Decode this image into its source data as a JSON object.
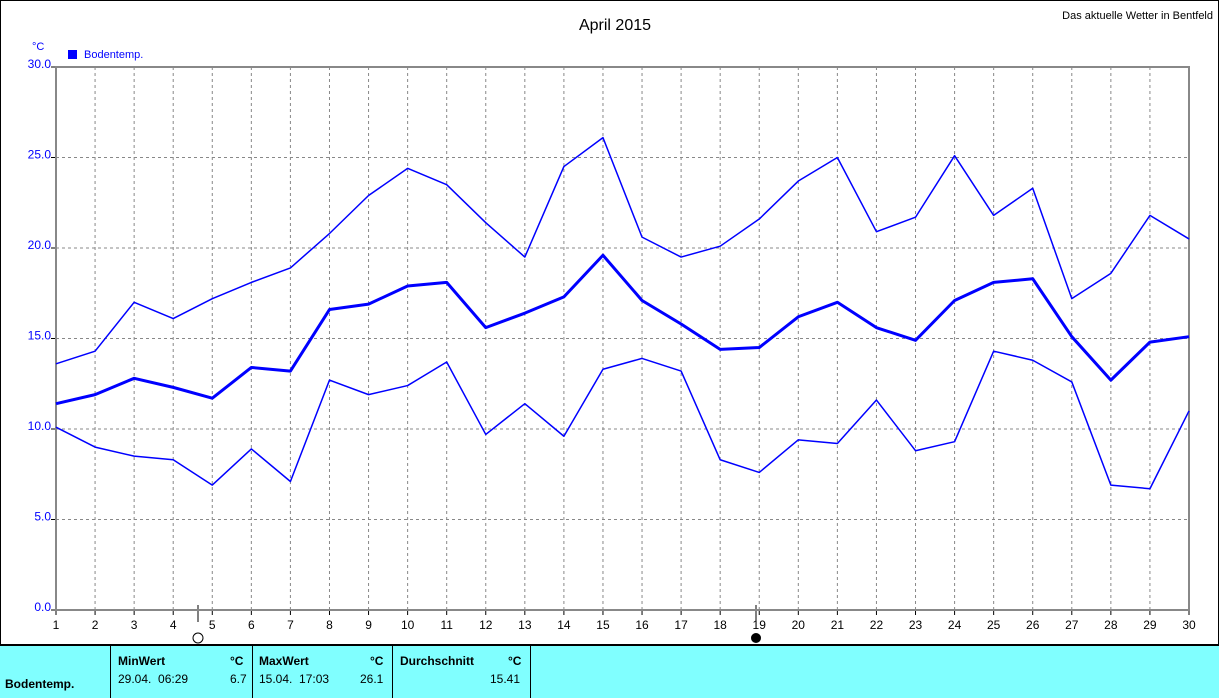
{
  "chart_data": {
    "type": "line",
    "title": "April 2015",
    "subtitle": "Das aktuelle Wetter in Bentfeld",
    "y_label": "°C",
    "legend": "Bodentemp.",
    "legend_color": "#0000ff",
    "x": [
      1,
      2,
      3,
      4,
      5,
      6,
      7,
      8,
      9,
      10,
      11,
      12,
      13,
      14,
      15,
      16,
      17,
      18,
      19,
      20,
      21,
      22,
      23,
      24,
      25,
      26,
      27,
      28,
      29,
      30
    ],
    "xlim": [
      1,
      30
    ],
    "xticks": [
      1,
      2,
      3,
      4,
      5,
      6,
      7,
      8,
      9,
      10,
      11,
      12,
      13,
      14,
      15,
      16,
      17,
      18,
      19,
      20,
      21,
      22,
      23,
      24,
      25,
      26,
      27,
      28,
      29,
      30
    ],
    "ylim": [
      0,
      30
    ],
    "yticks": [
      {
        "value": 0,
        "label": "0.0"
      },
      {
        "value": 5,
        "label": "5.0"
      },
      {
        "value": 10,
        "label": "10.0"
      },
      {
        "value": 15,
        "label": "15.0"
      },
      {
        "value": 20,
        "label": "20.0"
      },
      {
        "value": 25,
        "label": "25.0"
      },
      {
        "value": 30,
        "label": "30.0"
      }
    ],
    "grid": true,
    "series": [
      {
        "color": "#0000ff",
        "width": 1.5,
        "values": [
          13.6,
          14.3,
          17.0,
          16.1,
          17.2,
          18.1,
          18.9,
          20.8,
          22.9,
          24.4,
          23.5,
          21.4,
          19.5,
          24.5,
          26.1,
          20.6,
          19.5,
          20.1,
          21.6,
          23.7,
          25.0,
          20.9,
          21.7,
          25.1,
          21.8,
          23.3,
          17.2,
          18.6,
          21.8,
          20.5
        ]
      },
      {
        "color": "#0000ff",
        "width": 3,
        "values": [
          11.4,
          11.9,
          12.8,
          12.3,
          11.7,
          13.4,
          13.2,
          16.6,
          16.9,
          17.9,
          18.1,
          15.6,
          16.4,
          17.3,
          19.6,
          17.1,
          15.8,
          14.4,
          14.5,
          16.2,
          17.0,
          15.6,
          14.9,
          17.1,
          18.1,
          18.3,
          15.1,
          12.7,
          14.8,
          15.1
        ]
      },
      {
        "color": "#0000ff",
        "width": 1.5,
        "values": [
          10.1,
          9.0,
          8.5,
          8.3,
          6.9,
          8.9,
          7.1,
          12.7,
          11.9,
          12.4,
          13.7,
          9.7,
          11.4,
          9.6,
          13.3,
          13.9,
          13.2,
          8.3,
          7.6,
          9.4,
          9.2,
          11.6,
          8.8,
          9.3,
          14.3,
          13.8,
          12.6,
          6.9,
          6.7,
          11.0
        ]
      }
    ]
  },
  "table": {
    "row_label": "Bodentemp.",
    "columns": [
      {
        "header": "MinWert",
        "unit": "°C",
        "when": "29.04.  06:29",
        "value": "6.7"
      },
      {
        "header": "MaxWert",
        "unit": "°C",
        "when": "15.04.  17:03",
        "value": "26.1"
      },
      {
        "header": "Durchschnitt",
        "unit": "°C",
        "when": null,
        "value": "15.41"
      }
    ]
  }
}
